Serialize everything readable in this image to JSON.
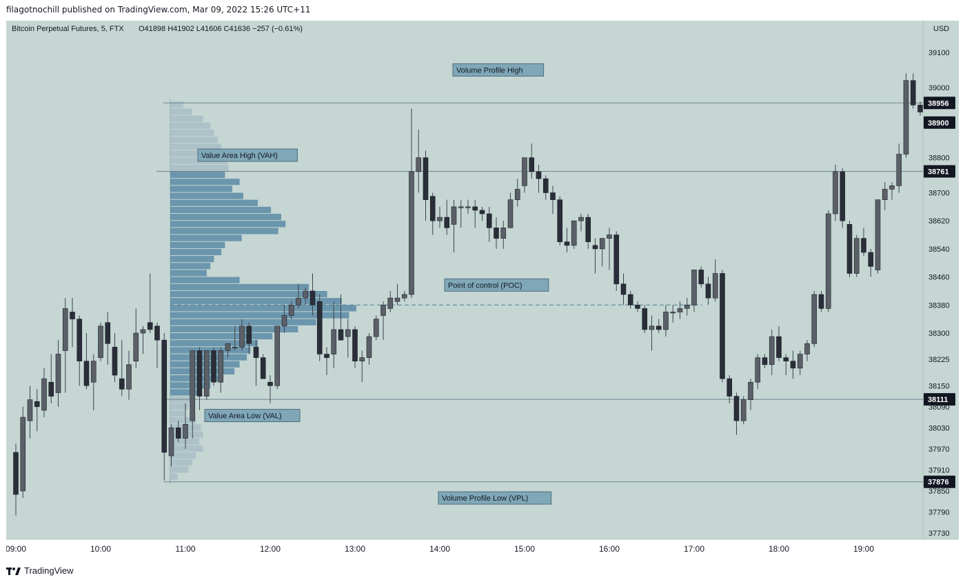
{
  "header": {
    "published": "filagotnochill published on TradingView.com, Mar 09, 2022 15:26 UTC+11"
  },
  "chart_info": {
    "symbol": "Bitcoin Perpetual Futures, 5, FTX",
    "ohlc": "O41898  H41902  L41606  C41636  −257 (−0.61%)",
    "currency": "USD"
  },
  "footer": {
    "logo_text": "TradingView",
    "logo_icon": "tradingview-logo-icon"
  },
  "colors": {
    "background": "#c5d6d3",
    "candle": "#2a2e39",
    "wick": "#3d434d",
    "profile_value_area": "#5a8ba6",
    "profile_outside": "#a3b9c3",
    "line": "#6e8591",
    "label_bg": "#7fa7b8",
    "price_label_bg": "#131722"
  },
  "chart_data": {
    "type": "candlestick",
    "title": "",
    "ylim": [
      37700,
      39160
    ],
    "yticks": [
      39100,
      39000,
      38800,
      38700,
      38620,
      38540,
      38460,
      38380,
      38300,
      38225,
      38150,
      38090,
      38030,
      37970,
      37910,
      37850,
      37790,
      37730
    ],
    "xticks": [
      "09:00",
      "10:00",
      "11:00",
      "12:00",
      "13:00",
      "14:00",
      "15:00",
      "16:00",
      "17:00",
      "18:00",
      "19:00"
    ],
    "x_start": "09:00",
    "interval_minutes": 5,
    "candles": [
      [
        37960,
        37985,
        37780,
        37840
      ],
      [
        37850,
        38090,
        37830,
        38060
      ],
      [
        38050,
        38150,
        38000,
        38110
      ],
      [
        38105,
        38140,
        38020,
        38090
      ],
      [
        38080,
        38200,
        38060,
        38170
      ],
      [
        38160,
        38240,
        38100,
        38120
      ],
      [
        38130,
        38280,
        38090,
        38240
      ],
      [
        38250,
        38400,
        38130,
        38370
      ],
      [
        38360,
        38400,
        38260,
        38340
      ],
      [
        38340,
        38350,
        38150,
        38220
      ],
      [
        38220,
        38300,
        38140,
        38150
      ],
      [
        38160,
        38240,
        38080,
        38220
      ],
      [
        38230,
        38330,
        38220,
        38320
      ],
      [
        38330,
        38360,
        38210,
        38270
      ],
      [
        38260,
        38300,
        38160,
        38180
      ],
      [
        38170,
        38280,
        38120,
        38140
      ],
      [
        38140,
        38250,
        38110,
        38210
      ],
      [
        38220,
        38370,
        38200,
        38300
      ],
      [
        38300,
        38320,
        38240,
        38310
      ],
      [
        38330,
        38470,
        38300,
        38310
      ],
      [
        38320,
        38330,
        38200,
        38280
      ],
      [
        38280,
        38300,
        37880,
        37960
      ],
      [
        37950,
        38040,
        37920,
        38030
      ],
      [
        38030,
        38050,
        37990,
        38000
      ],
      [
        38000,
        38100,
        37970,
        38040
      ],
      [
        38050,
        38250,
        38000,
        38250
      ],
      [
        38250,
        38260,
        38080,
        38120
      ],
      [
        38120,
        38240,
        38110,
        38250
      ],
      [
        38250,
        38260,
        38150,
        38160
      ],
      [
        38160,
        38260,
        38130,
        38250
      ],
      [
        38250,
        38270,
        38230,
        38270
      ],
      [
        38260,
        38320,
        38250,
        38260
      ],
      [
        38260,
        38340,
        38250,
        38320
      ],
      [
        38320,
        38330,
        38240,
        38270
      ],
      [
        38260,
        38280,
        38150,
        38230
      ],
      [
        38230,
        38240,
        38170,
        38170
      ],
      [
        38160,
        38180,
        38100,
        38150
      ],
      [
        38150,
        38320,
        38140,
        38320
      ],
      [
        38320,
        38380,
        38300,
        38350
      ],
      [
        38350,
        38390,
        38340,
        38380
      ],
      [
        38380,
        38440,
        38370,
        38400
      ],
      [
        38400,
        38430,
        38380,
        38420
      ],
      [
        38420,
        38470,
        38350,
        38380
      ],
      [
        38390,
        38410,
        38220,
        38240
      ],
      [
        38240,
        38260,
        38180,
        38230
      ],
      [
        38240,
        38390,
        38200,
        38310
      ],
      [
        38310,
        38410,
        38280,
        38280
      ],
      [
        38290,
        38340,
        38230,
        38310
      ],
      [
        38310,
        38320,
        38200,
        38220
      ],
      [
        38220,
        38250,
        38160,
        38230
      ],
      [
        38230,
        38300,
        38210,
        38290
      ],
      [
        38290,
        38350,
        38280,
        38340
      ],
      [
        38350,
        38390,
        38280,
        38380
      ],
      [
        38370,
        38420,
        38360,
        38400
      ],
      [
        38390,
        38440,
        38380,
        38400
      ],
      [
        38400,
        38420,
        38390,
        38410
      ],
      [
        38410,
        38940,
        38400,
        38760
      ],
      [
        38760,
        38880,
        38700,
        38800
      ],
      [
        38800,
        38820,
        38620,
        38680
      ],
      [
        38690,
        38700,
        38580,
        38620
      ],
      [
        38620,
        38660,
        38600,
        38630
      ],
      [
        38630,
        38680,
        38580,
        38600
      ],
      [
        38610,
        38680,
        38530,
        38660
      ],
      [
        38660,
        38680,
        38600,
        38660
      ],
      [
        38660,
        38680,
        38640,
        38660
      ],
      [
        38660,
        38680,
        38600,
        38650
      ],
      [
        38650,
        38660,
        38620,
        38640
      ],
      [
        38640,
        38660,
        38560,
        38600
      ],
      [
        38600,
        38630,
        38540,
        38570
      ],
      [
        38570,
        38620,
        38540,
        38600
      ],
      [
        38600,
        38700,
        38600,
        38680
      ],
      [
        38680,
        38740,
        38660,
        38710
      ],
      [
        38720,
        38800,
        38700,
        38800
      ],
      [
        38800,
        38840,
        38740,
        38760
      ],
      [
        38760,
        38780,
        38700,
        38740
      ],
      [
        38740,
        38750,
        38680,
        38700
      ],
      [
        38700,
        38720,
        38640,
        38680
      ],
      [
        38680,
        38690,
        38550,
        38560
      ],
      [
        38560,
        38600,
        38530,
        38550
      ],
      [
        38550,
        38620,
        38540,
        38620
      ],
      [
        38620,
        38640,
        38590,
        38630
      ],
      [
        38630,
        38640,
        38540,
        38560
      ],
      [
        38550,
        38570,
        38470,
        38540
      ],
      [
        38540,
        38570,
        38490,
        38570
      ],
      [
        38570,
        38600,
        38480,
        38580
      ],
      [
        38580,
        38590,
        38420,
        38440
      ],
      [
        38440,
        38470,
        38380,
        38410
      ],
      [
        38410,
        38420,
        38370,
        38380
      ],
      [
        38380,
        38390,
        38360,
        38370
      ],
      [
        38370,
        38380,
        38300,
        38310
      ],
      [
        38310,
        38350,
        38250,
        38320
      ],
      [
        38320,
        38340,
        38300,
        38310
      ],
      [
        38310,
        38380,
        38290,
        38360
      ],
      [
        38360,
        38380,
        38330,
        38360
      ],
      [
        38360,
        38390,
        38340,
        38370
      ],
      [
        38370,
        38400,
        38350,
        38380
      ],
      [
        38380,
        38480,
        38360,
        38480
      ],
      [
        38480,
        38490,
        38430,
        38440
      ],
      [
        38440,
        38460,
        38380,
        38400
      ],
      [
        38400,
        38510,
        38390,
        38470
      ],
      [
        38470,
        38480,
        38160,
        38170
      ],
      [
        38170,
        38180,
        38100,
        38120
      ],
      [
        38120,
        38130,
        38010,
        38050
      ],
      [
        38050,
        38120,
        38040,
        38110
      ],
      [
        38110,
        38170,
        38080,
        38160
      ],
      [
        38160,
        38240,
        38140,
        38230
      ],
      [
        38230,
        38240,
        38200,
        38210
      ],
      [
        38210,
        38310,
        38180,
        38290
      ],
      [
        38290,
        38320,
        38220,
        38230
      ],
      [
        38230,
        38240,
        38180,
        38220
      ],
      [
        38220,
        38250,
        38170,
        38200
      ],
      [
        38200,
        38250,
        38180,
        38240
      ],
      [
        38240,
        38280,
        38220,
        38270
      ],
      [
        38270,
        38420,
        38260,
        38410
      ],
      [
        38410,
        38420,
        38360,
        38370
      ],
      [
        38370,
        38650,
        38360,
        38640
      ],
      [
        38640,
        38780,
        38620,
        38760
      ],
      [
        38760,
        38770,
        38600,
        38620
      ],
      [
        38610,
        38620,
        38460,
        38470
      ],
      [
        38470,
        38580,
        38460,
        38570
      ],
      [
        38570,
        38600,
        38520,
        38530
      ],
      [
        38530,
        38540,
        38460,
        38490
      ],
      [
        38480,
        38680,
        38470,
        38680
      ],
      [
        38680,
        38730,
        38650,
        38710
      ],
      [
        38710,
        38730,
        38680,
        38720
      ],
      [
        38720,
        38840,
        38700,
        38810
      ],
      [
        38810,
        39040,
        38800,
        39020
      ],
      [
        39020,
        39040,
        38940,
        38950
      ],
      [
        38950,
        38960,
        38920,
        38930
      ]
    ],
    "volume_profile": {
      "type": "horizontal-bar",
      "price_levels": [
        38950,
        38930,
        38910,
        38890,
        38870,
        38850,
        38830,
        38810,
        38790,
        38770,
        38750,
        38730,
        38710,
        38690,
        38670,
        38650,
        38630,
        38610,
        38590,
        38570,
        38550,
        38530,
        38510,
        38490,
        38470,
        38450,
        38430,
        38410,
        38390,
        38370,
        38350,
        38330,
        38310,
        38290,
        38270,
        38250,
        38230,
        38210,
        38190,
        38170,
        38150,
        38130,
        38110,
        38090,
        38070,
        38050,
        38030,
        38010,
        37990,
        37970,
        37950,
        37930,
        37910,
        37890
      ],
      "volumes": [
        18,
        30,
        45,
        55,
        60,
        65,
        70,
        72,
        78,
        80,
        75,
        95,
        85,
        100,
        120,
        138,
        152,
        158,
        148,
        98,
        75,
        70,
        60,
        55,
        50,
        95,
        190,
        215,
        235,
        255,
        245,
        200,
        175,
        140,
        120,
        110,
        105,
        95,
        88,
        70,
        55,
        40,
        30,
        25,
        20,
        35,
        42,
        45,
        40,
        45,
        35,
        30,
        25,
        10
      ],
      "value_area_high": 38761,
      "value_area_low": 38111
    },
    "lines": [
      {
        "label": "Volume Profile High",
        "price": 38956
      },
      {
        "label": "Value Area High (VAH)",
        "price": 38761
      },
      {
        "label": "Point of control (POC)",
        "price": 38380
      },
      {
        "label": "Value Area Low (VAL)",
        "price": 38111
      },
      {
        "label": "Volume Profile Low (VPL)",
        "price": 37876
      }
    ],
    "price_labels": [
      38956,
      38900,
      38761,
      38111,
      37876
    ]
  }
}
